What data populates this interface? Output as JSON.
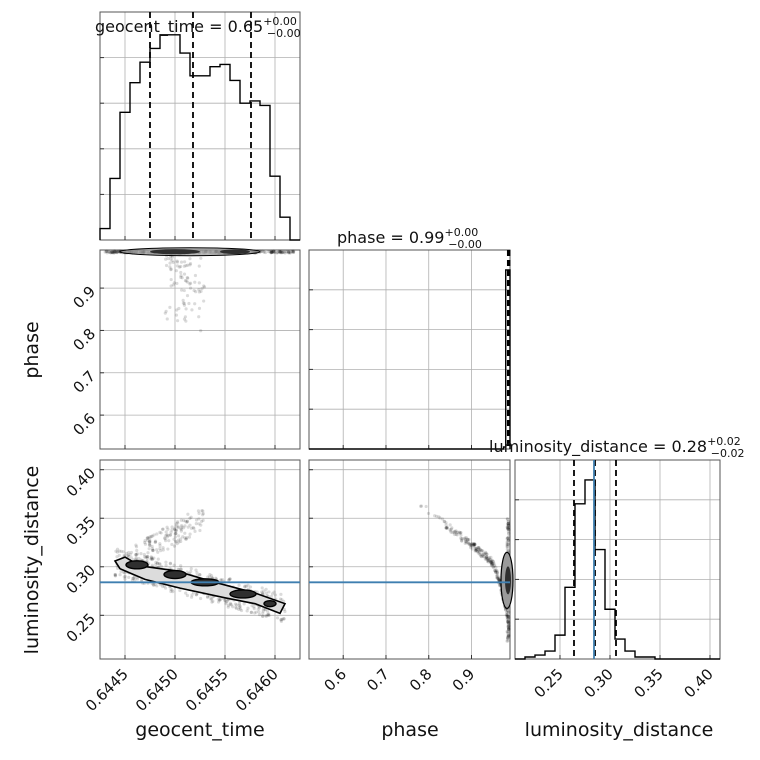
{
  "chart_data": {
    "type": "corner",
    "parameters": [
      {
        "name": "geocent_time",
        "axis_label": "geocent_time",
        "title": "geocent_time = 0.65",
        "title_upper": "+0.00",
        "title_lower": "−0.00",
        "range": [
          0.64425,
          0.64625
        ],
        "ticks": [
          0.6445,
          0.645,
          0.6455,
          0.646
        ],
        "tick_labels": [
          "0.6445",
          "0.6450",
          "0.6455",
          "0.6460"
        ],
        "quantiles": [
          0.64475,
          0.64518,
          0.64576
        ],
        "histogram": {
          "edges": [
            0.64425,
            0.64435,
            0.64445,
            0.64455,
            0.64465,
            0.64475,
            0.64485,
            0.64495,
            0.64505,
            0.64515,
            0.64525,
            0.64535,
            0.64545,
            0.64555,
            0.64565,
            0.64575,
            0.64585,
            0.64595,
            0.64605,
            0.64615,
            0.64625
          ],
          "counts": [
            5,
            27,
            56,
            69,
            78,
            84,
            90,
            90,
            82,
            72,
            72,
            76,
            77,
            70,
            60,
            61,
            59,
            28,
            10,
            0
          ]
        }
      },
      {
        "name": "phase",
        "axis_label": "phase",
        "title": "phase = 0.99",
        "title_upper": "+0.00",
        "title_lower": "−0.00",
        "range": [
          0.52,
          0.99
        ],
        "ticks": [
          0.6,
          0.7,
          0.8,
          0.9
        ],
        "tick_labels": [
          "0.6",
          "0.7",
          "0.8",
          "0.9"
        ],
        "quantiles": [
          0.985,
          0.987,
          0.989
        ],
        "histogram": {
          "edges": [
            0.52,
            0.9,
            0.94,
            0.96,
            0.97,
            0.975,
            0.98,
            0.99
          ],
          "counts": [
            0,
            0,
            0,
            0,
            0,
            1,
            90
          ]
        }
      },
      {
        "name": "luminosity_distance",
        "axis_label": "luminosity_distance",
        "title": "luminosity_distance = 0.28",
        "title_upper": "+0.02",
        "title_lower": "−0.02",
        "range": [
          0.205,
          0.41
        ],
        "ticks": [
          0.25,
          0.3,
          0.35,
          0.4
        ],
        "tick_labels": [
          "0.25",
          "0.30",
          "0.35",
          "0.40"
        ],
        "quantiles": [
          0.264,
          0.285,
          0.306
        ],
        "truth": 0.284,
        "histogram": {
          "edges": [
            0.205,
            0.215,
            0.225,
            0.235,
            0.245,
            0.255,
            0.265,
            0.275,
            0.285,
            0.295,
            0.305,
            0.315,
            0.325,
            0.335,
            0.345,
            0.355,
            0.365,
            0.375,
            0.385,
            0.395,
            0.405,
            0.41
          ],
          "counts": [
            0,
            1,
            2,
            4,
            12,
            36,
            78,
            90,
            55,
            25,
            10,
            4,
            1,
            1,
            0,
            0,
            0,
            0,
            0,
            0,
            0
          ]
        }
      }
    ],
    "hist_ylim": [
      0,
      100
    ],
    "hist_y_ticks": [
      20,
      40,
      60,
      80
    ],
    "y_tick_labels": {
      "phase": [
        "0.6",
        "0.7",
        "0.8",
        "0.9"
      ],
      "luminosity_distance": [
        "0.25",
        "0.30",
        "0.35",
        "0.40"
      ]
    },
    "grid": true,
    "legend": "none"
  }
}
